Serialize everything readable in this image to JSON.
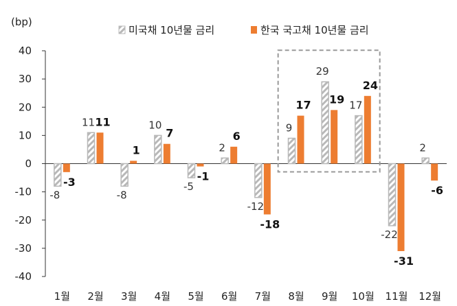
{
  "chart_data": {
    "type": "bar",
    "unit_label": "(bp)",
    "categories": [
      "1월",
      "2월",
      "3월",
      "4월",
      "5월",
      "6월",
      "7월",
      "8월",
      "9월",
      "10월",
      "11월",
      "12월"
    ],
    "series": [
      {
        "name": "미국채 10년물 금리",
        "values": [
          -8,
          11,
          -8,
          10,
          -5,
          2,
          -12,
          9,
          29,
          17,
          -22,
          2
        ],
        "color": "#b8b8b8",
        "style": "hatched"
      },
      {
        "name": "한국 국고채 10년물 금리",
        "values": [
          -3,
          11,
          1,
          7,
          -1,
          6,
          -18,
          17,
          19,
          24,
          -31,
          -6
        ],
        "color": "#ed7d31",
        "style": "solid"
      }
    ],
    "ylim": [
      -40,
      40
    ],
    "yticks": [
      -40,
      -30,
      -20,
      -10,
      0,
      10,
      20,
      30,
      40
    ],
    "highlight_categories": [
      "8월",
      "9월",
      "10월"
    ],
    "legend": "top-center",
    "grid": false
  }
}
